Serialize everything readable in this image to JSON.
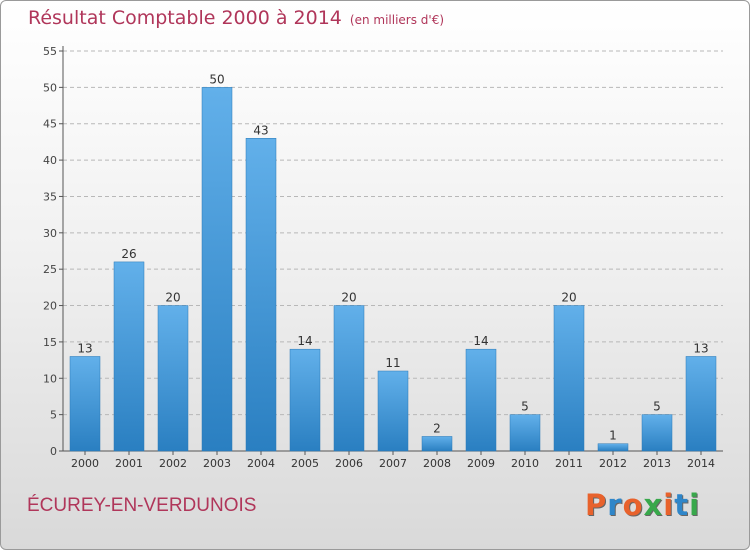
{
  "header": {
    "title": "Résultat Comptable 2000 à 2014",
    "unit": "(en milliers d'€)"
  },
  "footer": {
    "commune": "ÉCUREY-EN-VERDUNOIS",
    "brand": "Proxiti",
    "brand_colors": [
      "#e8622c",
      "#2f86c9",
      "#e8622c",
      "#38a84b",
      "#e8622c",
      "#2f86c9",
      "#38a84b"
    ]
  },
  "colors": {
    "bar_top": "#62b0ea",
    "bar_bottom": "#2a7fc1",
    "grid": "#b8b8b8",
    "title": "#b0365a"
  },
  "chart_data": {
    "type": "bar",
    "title": "Résultat Comptable 2000 à 2014",
    "subtitle": "(en milliers d'€)",
    "xlabel": "",
    "ylabel": "",
    "categories": [
      "2000",
      "2001",
      "2002",
      "2003",
      "2004",
      "2005",
      "2006",
      "2007",
      "2008",
      "2009",
      "2010",
      "2011",
      "2012",
      "2013",
      "2014"
    ],
    "values": [
      13,
      26,
      20,
      50,
      43,
      14,
      20,
      11,
      2,
      14,
      5,
      20,
      1,
      5,
      13
    ],
    "ylim": [
      0,
      55
    ],
    "yticks": [
      0,
      5,
      10,
      15,
      20,
      25,
      30,
      35,
      40,
      45,
      50,
      55
    ],
    "grid": true,
    "legend": "none"
  }
}
